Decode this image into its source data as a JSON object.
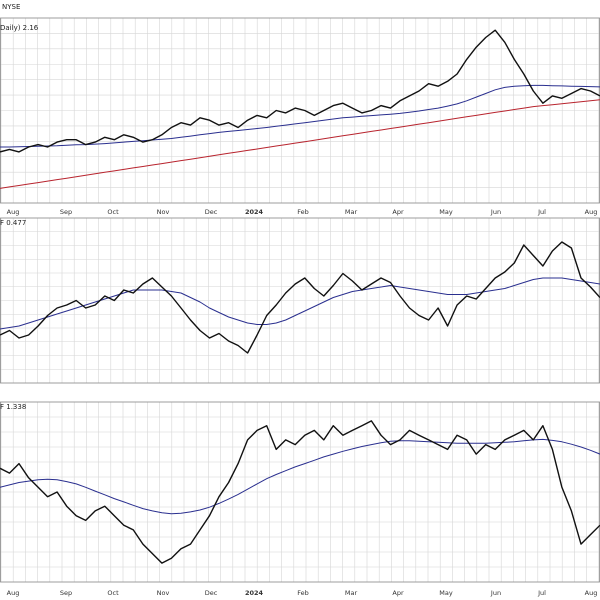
{
  "header": {
    "title_fragment": "NYSE",
    "panel1_label": "Daily) 2.16",
    "panel2_label": "F 0.477",
    "panel3_label": "F 1.338"
  },
  "chart_data": {
    "type": "line",
    "x_axis": {
      "ticks": [
        "Aug",
        "Sep",
        "Oct",
        "Nov",
        "Dec",
        "2024",
        "Feb",
        "Mar",
        "Apr",
        "May",
        "Jun",
        "Jul",
        "Aug"
      ],
      "year_tick": "2024"
    },
    "colors": {
      "price": "#111111",
      "ma_short": "#2a2f8f",
      "ma_long": "#b8242e",
      "grid": "#d6d6d6",
      "panel_border": "#8a8a8a"
    },
    "panels": [
      {
        "label": "Daily) 2.16",
        "series": [
          {
            "role": "price",
            "color": "#111111",
            "values": [
              1.93,
              1.94,
              1.93,
              1.95,
              1.96,
              1.95,
              1.97,
              1.98,
              1.98,
              1.96,
              1.97,
              1.99,
              1.98,
              2.0,
              1.99,
              1.97,
              1.98,
              2.0,
              2.03,
              2.05,
              2.04,
              2.07,
              2.06,
              2.04,
              2.05,
              2.03,
              2.06,
              2.08,
              2.07,
              2.1,
              2.09,
              2.11,
              2.1,
              2.08,
              2.1,
              2.12,
              2.13,
              2.11,
              2.09,
              2.1,
              2.12,
              2.11,
              2.14,
              2.16,
              2.18,
              2.21,
              2.2,
              2.22,
              2.25,
              2.31,
              2.36,
              2.4,
              2.43,
              2.38,
              2.31,
              2.25,
              2.18,
              2.13,
              2.16,
              2.15,
              2.17,
              2.19,
              2.18,
              2.16
            ]
          },
          {
            "role": "ma_short",
            "color": "#2a2f8f",
            "values": [
              1.95,
              1.95,
              1.951,
              1.952,
              1.953,
              1.954,
              1.955,
              1.957,
              1.959,
              1.96,
              1.962,
              1.964,
              1.967,
              1.97,
              1.973,
              1.976,
              1.979,
              1.982,
              1.985,
              1.99,
              1.995,
              2.0,
              2.005,
              2.01,
              2.014,
              2.018,
              2.022,
              2.026,
              2.03,
              2.035,
              2.04,
              2.045,
              2.05,
              2.055,
              2.06,
              2.065,
              2.07,
              2.073,
              2.076,
              2.079,
              2.082,
              2.085,
              2.088,
              2.093,
              2.098,
              2.104,
              2.11,
              2.118,
              2.127,
              2.14,
              2.155,
              2.17,
              2.185,
              2.195,
              2.2,
              2.202,
              2.203,
              2.203,
              2.202,
              2.201,
              2.2,
              2.199,
              2.198,
              2.197
            ]
          },
          {
            "role": "ma_long",
            "color": "#b8242e",
            "values": [
              1.78,
              1.786,
              1.792,
              1.798,
              1.804,
              1.81,
              1.816,
              1.822,
              1.828,
              1.834,
              1.84,
              1.846,
              1.852,
              1.858,
              1.864,
              1.87,
              1.876,
              1.882,
              1.888,
              1.894,
              1.9,
              1.906,
              1.912,
              1.918,
              1.924,
              1.93,
              1.936,
              1.942,
              1.948,
              1.954,
              1.96,
              1.966,
              1.972,
              1.978,
              1.984,
              1.99,
              1.996,
              2.002,
              2.008,
              2.014,
              2.02,
              2.026,
              2.032,
              2.038,
              2.044,
              2.05,
              2.056,
              2.062,
              2.068,
              2.074,
              2.08,
              2.086,
              2.092,
              2.098,
              2.104,
              2.11,
              2.116,
              2.12,
              2.124,
              2.128,
              2.132,
              2.136,
              2.14,
              2.144
            ]
          }
        ],
        "ylim": [
          1.72,
          2.48
        ]
      },
      {
        "label": "F 0.477",
        "series": [
          {
            "role": "price",
            "color": "#111111",
            "values": [
              0.452,
              0.455,
              0.45,
              0.452,
              0.458,
              0.465,
              0.47,
              0.472,
              0.475,
              0.47,
              0.472,
              0.478,
              0.475,
              0.482,
              0.48,
              0.486,
              0.49,
              0.484,
              0.478,
              0.47,
              0.462,
              0.455,
              0.45,
              0.453,
              0.448,
              0.445,
              0.44,
              0.452,
              0.465,
              0.472,
              0.48,
              0.486,
              0.49,
              0.483,
              0.478,
              0.485,
              0.493,
              0.488,
              0.482,
              0.486,
              0.49,
              0.487,
              0.478,
              0.47,
              0.465,
              0.462,
              0.47,
              0.458,
              0.472,
              0.478,
              0.476,
              0.483,
              0.49,
              0.494,
              0.5,
              0.512,
              0.505,
              0.498,
              0.508,
              0.514,
              0.51,
              0.49,
              0.484,
              0.477
            ]
          },
          {
            "role": "ma_short",
            "color": "#2a2f8f",
            "values": [
              0.456,
              0.457,
              0.458,
              0.46,
              0.462,
              0.464,
              0.466,
              0.468,
              0.47,
              0.472,
              0.474,
              0.476,
              0.478,
              0.48,
              0.482,
              0.482,
              0.482,
              0.482,
              0.481,
              0.48,
              0.477,
              0.474,
              0.47,
              0.467,
              0.464,
              0.462,
              0.46,
              0.459,
              0.459,
              0.46,
              0.462,
              0.465,
              0.468,
              0.471,
              0.474,
              0.477,
              0.479,
              0.481,
              0.482,
              0.483,
              0.484,
              0.485,
              0.484,
              0.483,
              0.482,
              0.481,
              0.48,
              0.479,
              0.479,
              0.479,
              0.48,
              0.481,
              0.482,
              0.483,
              0.485,
              0.487,
              0.489,
              0.49,
              0.49,
              0.49,
              0.489,
              0.488,
              0.487,
              0.486
            ]
          }
        ],
        "ylim": [
          0.42,
          0.53
        ]
      },
      {
        "label": "F 1.338",
        "series": [
          {
            "role": "price",
            "color": "#111111",
            "values": [
              1.46,
              1.45,
              1.47,
              1.44,
              1.42,
              1.4,
              1.41,
              1.38,
              1.36,
              1.35,
              1.37,
              1.38,
              1.36,
              1.34,
              1.33,
              1.3,
              1.28,
              1.26,
              1.27,
              1.29,
              1.3,
              1.33,
              1.36,
              1.4,
              1.43,
              1.47,
              1.52,
              1.54,
              1.55,
              1.5,
              1.52,
              1.51,
              1.53,
              1.54,
              1.52,
              1.55,
              1.53,
              1.54,
              1.55,
              1.56,
              1.53,
              1.51,
              1.52,
              1.54,
              1.53,
              1.52,
              1.51,
              1.5,
              1.53,
              1.52,
              1.49,
              1.51,
              1.5,
              1.52,
              1.53,
              1.54,
              1.52,
              1.55,
              1.5,
              1.42,
              1.37,
              1.3,
              1.32,
              1.34
            ]
          },
          {
            "role": "ma_short",
            "color": "#2a2f8f",
            "values": [
              1.42,
              1.425,
              1.43,
              1.433,
              1.436,
              1.437,
              1.436,
              1.432,
              1.427,
              1.42,
              1.412,
              1.404,
              1.396,
              1.389,
              1.382,
              1.375,
              1.37,
              1.366,
              1.364,
              1.365,
              1.368,
              1.372,
              1.378,
              1.386,
              1.395,
              1.405,
              1.416,
              1.427,
              1.438,
              1.447,
              1.455,
              1.463,
              1.47,
              1.477,
              1.484,
              1.49,
              1.496,
              1.501,
              1.506,
              1.51,
              1.514,
              1.517,
              1.518,
              1.518,
              1.517,
              1.516,
              1.515,
              1.514,
              1.513,
              1.513,
              1.513,
              1.513,
              1.514,
              1.515,
              1.516,
              1.518,
              1.52,
              1.521,
              1.519,
              1.516,
              1.511,
              1.505,
              1.498,
              1.49
            ]
          }
        ],
        "ylim": [
          1.22,
          1.6
        ]
      }
    ],
    "grid": true,
    "legend": "none"
  }
}
